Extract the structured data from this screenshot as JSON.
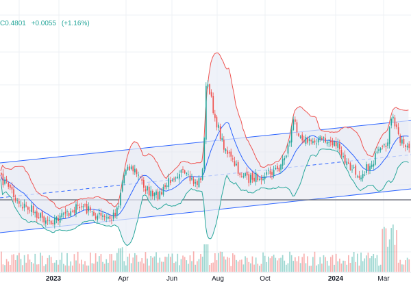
{
  "ohlc_readout": {
    "close_label": "C",
    "close_value": "0.4801",
    "change_abs": "+0.0055",
    "change_pct": "(+1.16%)",
    "color": "#26a69a"
  },
  "colors": {
    "up": "#26a69a",
    "down": "#ef5350",
    "bb_upper": "#ef5350",
    "bb_lower": "#26a69a",
    "bb_basis": "#2962ff",
    "channel": "#2962ff",
    "channel_fill": "#e3e6ee",
    "grid": "#eef0f4",
    "hline": "#787b86"
  },
  "chart_data": {
    "type": "candlestick-with-bollinger-bands",
    "x_ticks": [
      "2023",
      "Apr",
      "Jun",
      "Aug",
      "Oct",
      "2024",
      "Mar"
    ],
    "indicators": [
      "bollinger-bands",
      "parallel-channel",
      "horizontal-line",
      "volume"
    ],
    "grid": true
  }
}
